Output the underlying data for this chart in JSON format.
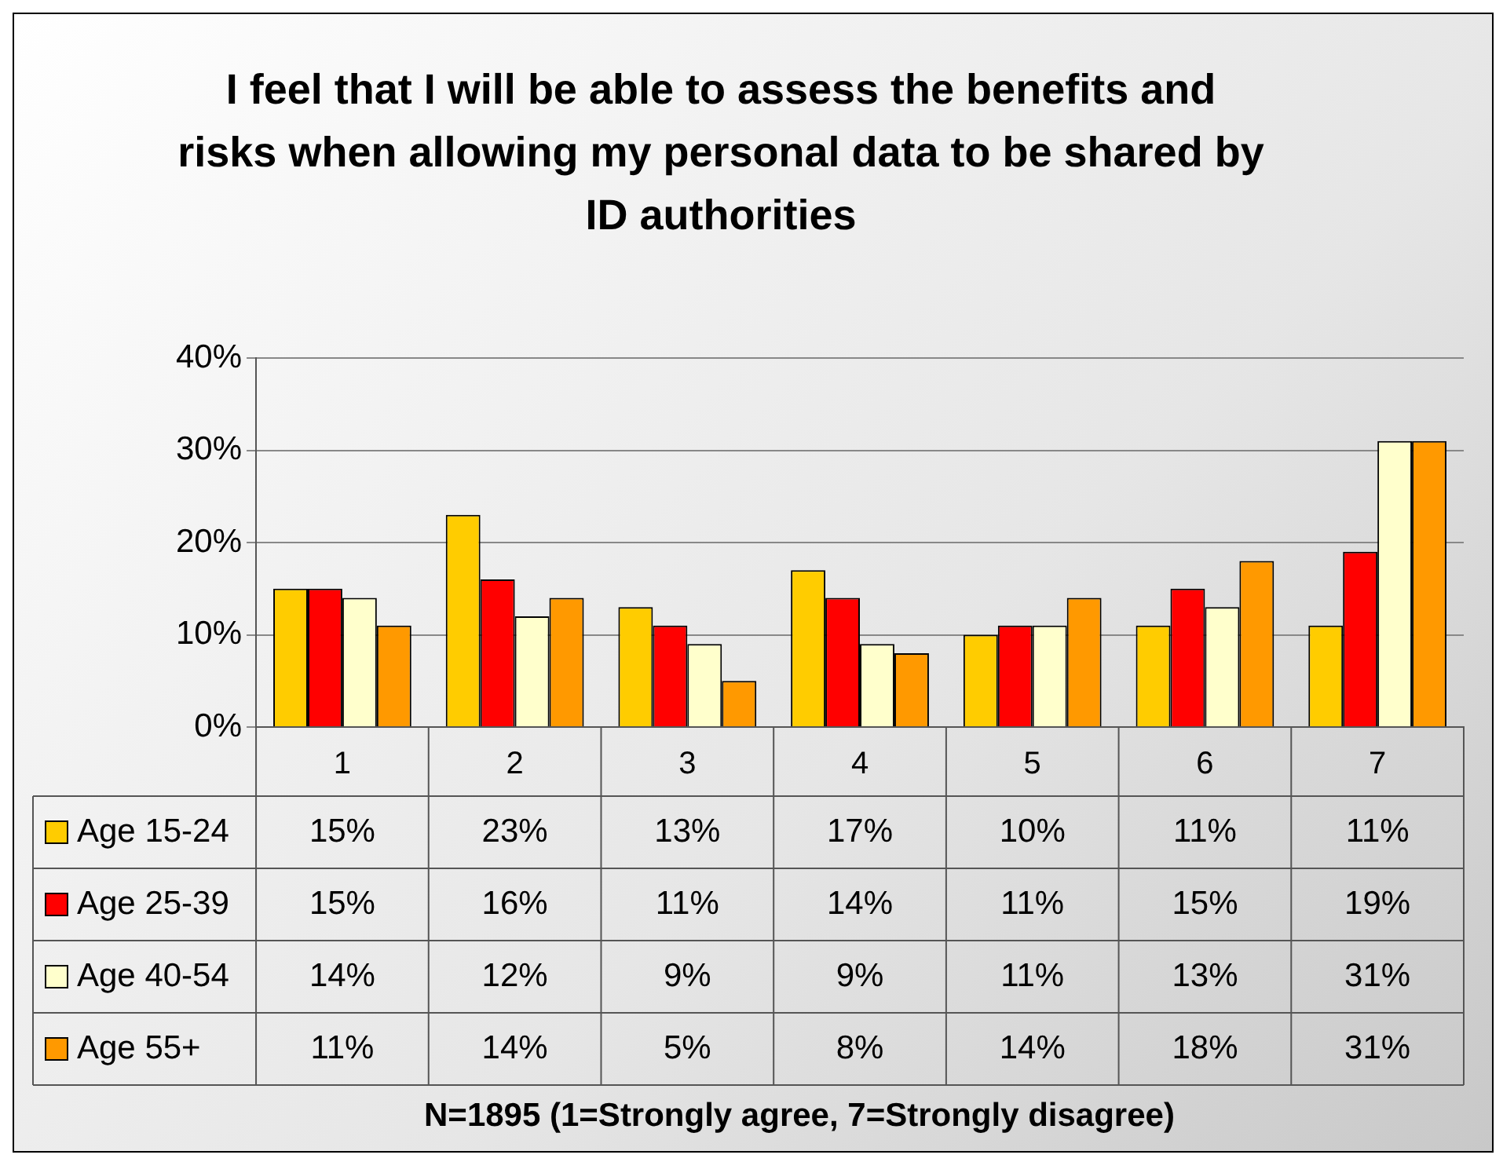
{
  "chart_data": {
    "type": "bar",
    "title": "I feel that I will be able to assess the benefits and risks when allowing my personal data to be shared by ID authorities",
    "categories": [
      "1",
      "2",
      "3",
      "4",
      "5",
      "6",
      "7"
    ],
    "series": [
      {
        "name": "Age 15-24",
        "color": "#ffcc00",
        "values": [
          15,
          23,
          13,
          17,
          10,
          11,
          11
        ],
        "value_labels": [
          "15%",
          "23%",
          "13%",
          "17%",
          "10%",
          "11%",
          "11%"
        ]
      },
      {
        "name": "Age 25-39",
        "color": "#ff0000",
        "values": [
          15,
          16,
          11,
          14,
          11,
          15,
          19
        ],
        "value_labels": [
          "15%",
          "16%",
          "11%",
          "14%",
          "11%",
          "15%",
          "19%"
        ]
      },
      {
        "name": "Age 40-54",
        "color": "#ffffcc",
        "values": [
          14,
          12,
          9,
          9,
          11,
          13,
          31
        ],
        "value_labels": [
          "14%",
          "12%",
          "9%",
          "9%",
          "11%",
          "13%",
          "31%"
        ]
      },
      {
        "name": "Age 55+",
        "color": "#ff9900",
        "values": [
          11,
          14,
          5,
          8,
          14,
          18,
          31
        ],
        "value_labels": [
          "11%",
          "14%",
          "5%",
          "8%",
          "14%",
          "18%",
          "31%"
        ]
      }
    ],
    "ylim": [
      0,
      40
    ],
    "yticks": [
      {
        "value": 0,
        "label": "0%"
      },
      {
        "value": 10,
        "label": "10%"
      },
      {
        "value": 20,
        "label": "20%"
      },
      {
        "value": 30,
        "label": "30%"
      },
      {
        "value": 40,
        "label": "40%"
      }
    ],
    "grid": "y",
    "legend": "bottom left",
    "annotations": [
      "N=1895 (1=Strongly agree, 7=Strongly disagree)"
    ]
  }
}
